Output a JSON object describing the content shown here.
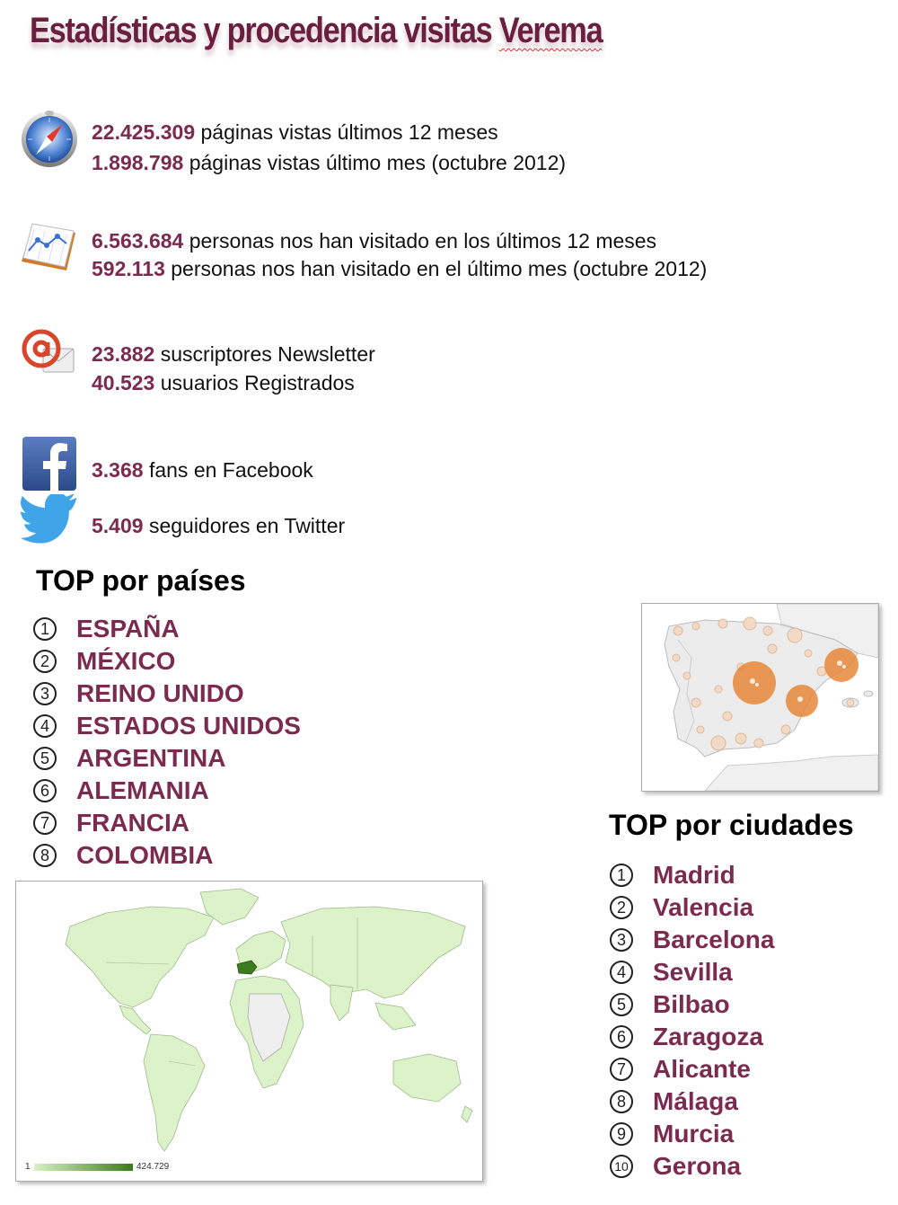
{
  "title_main": "Estadísticas y procedencia visitas ",
  "title_brand": "Verema",
  "stats": {
    "pageviews": [
      {
        "num": "22.425.309",
        "text": " páginas vistas últimos 12 meses"
      },
      {
        "num": "1.898.798",
        "text": " páginas vistas último mes (octubre 2012)"
      }
    ],
    "visitors": [
      {
        "num": "6.563.684",
        "text": " personas nos han visitado en los últimos 12 meses"
      },
      {
        "num": "592.113",
        "text": " personas nos han visitado en el último mes (octubre 2012)"
      }
    ],
    "users": [
      {
        "num": "23.882",
        "text": " suscriptores Newsletter"
      },
      {
        "num": "40.523",
        "text": " usuarios Registrados"
      }
    ],
    "facebook": {
      "num": "3.368",
      "text": " fans en Facebook"
    },
    "twitter": {
      "num": "5.409",
      "text": " seguidores en Twitter"
    }
  },
  "countries": {
    "heading": "TOP por países",
    "items": [
      {
        "n": "1",
        "label": "ESPAÑA"
      },
      {
        "n": "2",
        "label": "MÉXICO"
      },
      {
        "n": "3",
        "label": "REINO UNIDO"
      },
      {
        "n": "4",
        "label": "ESTADOS UNIDOS"
      },
      {
        "n": "5",
        "label": "ARGENTINA"
      },
      {
        "n": "6",
        "label": "ALEMANIA"
      },
      {
        "n": "7",
        "label": "FRANCIA"
      },
      {
        "n": "8",
        "label": "COLOMBIA"
      }
    ]
  },
  "cities": {
    "heading": "TOP por ciudades",
    "items": [
      {
        "n": "1",
        "label": "Madrid"
      },
      {
        "n": "2",
        "label": "Valencia"
      },
      {
        "n": "3",
        "label": "Barcelona"
      },
      {
        "n": "4",
        "label": "Sevilla"
      },
      {
        "n": "5",
        "label": "Bilbao"
      },
      {
        "n": "6",
        "label": "Zaragoza"
      },
      {
        "n": "7",
        "label": "Alicante"
      },
      {
        "n": "8",
        "label": "Málaga"
      },
      {
        "n": "9",
        "label": "Murcia"
      },
      {
        "n": "10",
        "label": "Gerona"
      }
    ]
  },
  "world_map": {
    "legend_min": "1",
    "legend_max": "424.729",
    "colors": {
      "low": "#d9f2c4",
      "high": "#3b7a1e",
      "border": "#888888"
    }
  },
  "colors": {
    "accent": "#7b2a50",
    "title": "#6b1f3f",
    "map_bubble": "#e8873a"
  }
}
